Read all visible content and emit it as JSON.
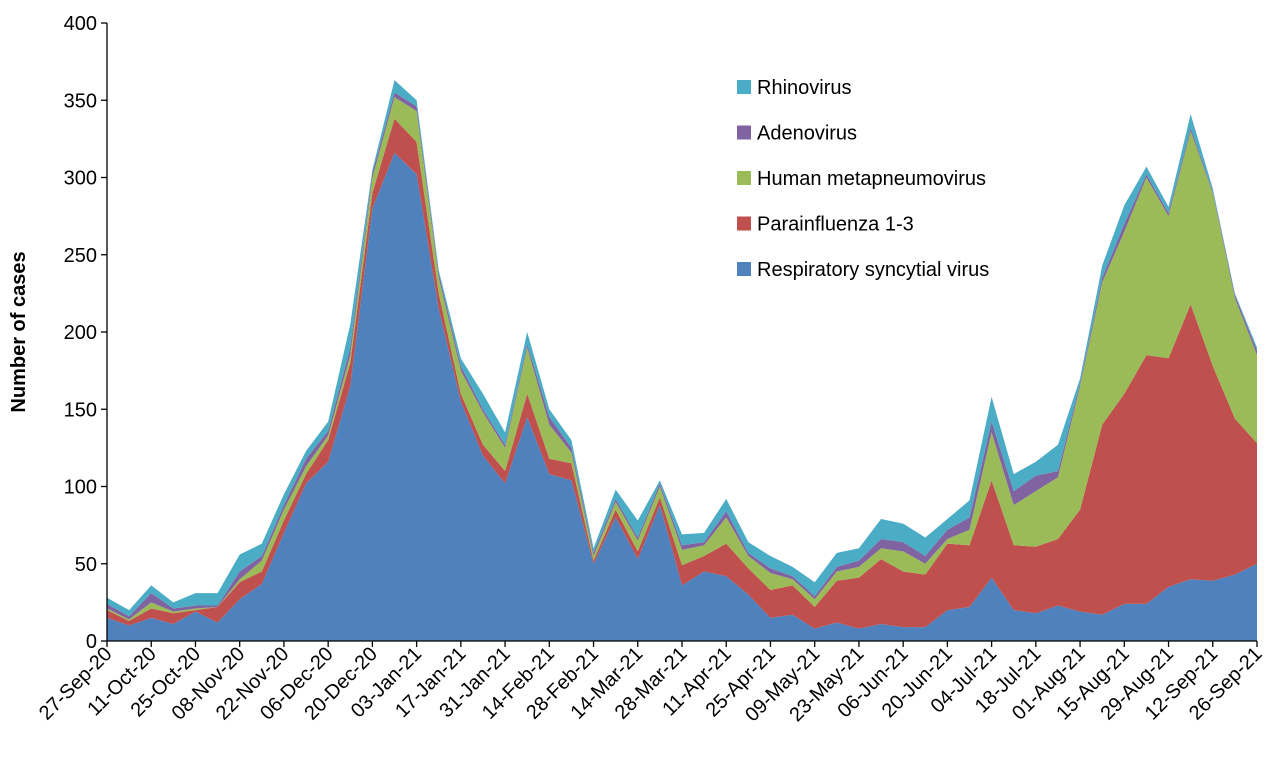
{
  "chart_data": {
    "type": "stacked_area",
    "y_label": "Number of cases",
    "categories": [
      "27-Sep-20",
      null,
      "11-Oct-20",
      null,
      "25-Oct-20",
      null,
      "08-Nov-20",
      null,
      "22-Nov-20",
      null,
      "06-Dec-20",
      null,
      "20-Dec-20",
      null,
      "03-Jan-21",
      null,
      "17-Jan-21",
      null,
      "31-Jan-21",
      null,
      "14-Feb-21",
      null,
      "28-Feb-21",
      null,
      "14-Mar-21",
      null,
      "28-Mar-21",
      null,
      "11-Apr-21",
      null,
      "25-Apr-21",
      null,
      "09-May-21",
      null,
      "23-May-21",
      null,
      "06-Jun-21",
      null,
      "20-Jun-21",
      null,
      "04-Jul-21",
      null,
      "18-Jul-21",
      null,
      "01-Aug-21",
      null,
      "15-Aug-21",
      null,
      "29-Aug-21",
      null,
      "12-Sep-21",
      null,
      "26-Sep-21"
    ],
    "series": [
      {
        "name": "Respiratory syncytial virus",
        "color": "#4f81bd",
        "values": [
          15,
          10,
          15,
          11,
          19,
          12,
          27,
          37,
          70,
          102,
          116,
          165,
          280,
          316,
          302,
          215,
          155,
          120,
          102,
          145,
          108,
          104,
          50,
          80,
          53,
          88,
          36,
          45,
          42,
          30,
          15,
          17,
          8,
          12,
          8,
          11,
          9,
          9,
          20,
          22,
          41,
          20,
          18,
          23,
          19,
          17,
          24,
          24,
          35,
          40,
          39,
          43,
          50
        ]
      },
      {
        "name": "Parainfluenza 1-3",
        "color": "#c0504d",
        "values": [
          5,
          3,
          6,
          7,
          1,
          10,
          11,
          8,
          8,
          6,
          14,
          15,
          10,
          22,
          21,
          10,
          5,
          7,
          8,
          15,
          10,
          11,
          2,
          5,
          5,
          5,
          13,
          10,
          21,
          17,
          18,
          19,
          14,
          27,
          33,
          42,
          36,
          34,
          43,
          40,
          63,
          42,
          43,
          43,
          66,
          123,
          136,
          161,
          148,
          178,
          139,
          101,
          78
        ]
      },
      {
        "name": "Human metapneumovirus",
        "color": "#9bbb59",
        "values": [
          1,
          1,
          4,
          1,
          1,
          0,
          2,
          7,
          7,
          5,
          3,
          5,
          10,
          14,
          20,
          10,
          15,
          21,
          15,
          30,
          22,
          7,
          3,
          5,
          7,
          7,
          10,
          7,
          17,
          8,
          11,
          4,
          5,
          6,
          7,
          7,
          13,
          7,
          3,
          10,
          31,
          26,
          36,
          40,
          80,
          92,
          105,
          115,
          92,
          112,
          112,
          78,
          57
        ]
      },
      {
        "name": "Adenovirus",
        "color": "#8064a2",
        "values": [
          3,
          2,
          6,
          2,
          2,
          1,
          5,
          3,
          3,
          5,
          3,
          5,
          3,
          3,
          3,
          3,
          3,
          2,
          2,
          2,
          5,
          3,
          2,
          2,
          2,
          2,
          3,
          2,
          4,
          2,
          3,
          2,
          2,
          3,
          4,
          6,
          6,
          5,
          6,
          8,
          7,
          9,
          10,
          4,
          2,
          3,
          5,
          2,
          2,
          2,
          1,
          2,
          3
        ]
      },
      {
        "name": "Rhinovirus",
        "color": "#4bacc6",
        "values": [
          4,
          4,
          5,
          4,
          8,
          8,
          11,
          8,
          7,
          5,
          6,
          15,
          2,
          8,
          4,
          2,
          5,
          10,
          8,
          8,
          5,
          5,
          3,
          6,
          11,
          2,
          7,
          6,
          8,
          7,
          8,
          6,
          9,
          9,
          8,
          13,
          12,
          12,
          7,
          11,
          16,
          11,
          9,
          17,
          3,
          8,
          12,
          5,
          4,
          9,
          2,
          1,
          2
        ]
      }
    ],
    "ylim": [
      0,
      400
    ],
    "yticks": [
      0,
      50,
      100,
      150,
      200,
      250,
      300,
      350,
      400
    ]
  }
}
